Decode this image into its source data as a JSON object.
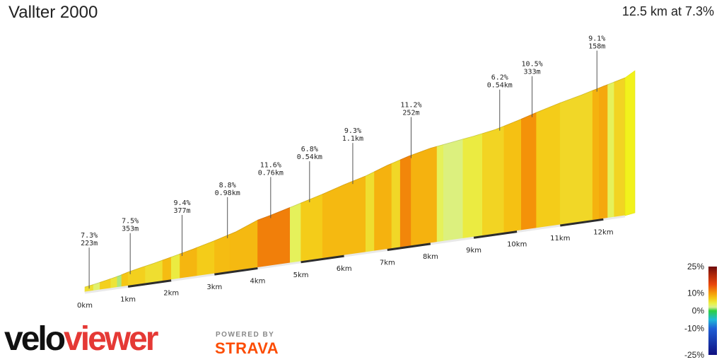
{
  "header": {
    "title": "Vallter 2000",
    "summary": "12.5 km at 7.3%"
  },
  "chart_data": {
    "type": "area",
    "title": "Vallter 2000",
    "total_km": 12.5,
    "x_ticks": [
      "0km",
      "1km",
      "2km",
      "3km",
      "4km",
      "5km",
      "6km",
      "7km",
      "8km",
      "9km",
      "10km",
      "11km",
      "12km"
    ],
    "profile": [
      {
        "km": 0.0,
        "elev": 0
      },
      {
        "km": 0.2,
        "elev": 10
      },
      {
        "km": 0.5,
        "elev": 28
      },
      {
        "km": 0.8,
        "elev": 48
      },
      {
        "km": 1.0,
        "elev": 66
      },
      {
        "km": 1.3,
        "elev": 86
      },
      {
        "km": 1.6,
        "elev": 104
      },
      {
        "km": 2.0,
        "elev": 132
      },
      {
        "km": 2.5,
        "elev": 168
      },
      {
        "km": 3.0,
        "elev": 208
      },
      {
        "km": 3.5,
        "elev": 252
      },
      {
        "km": 4.0,
        "elev": 316
      },
      {
        "km": 4.3,
        "elev": 338
      },
      {
        "km": 4.8,
        "elev": 380
      },
      {
        "km": 5.5,
        "elev": 440
      },
      {
        "km": 6.0,
        "elev": 488
      },
      {
        "km": 6.5,
        "elev": 530
      },
      {
        "km": 7.0,
        "elev": 586
      },
      {
        "km": 7.5,
        "elev": 632
      },
      {
        "km": 8.0,
        "elev": 668
      },
      {
        "km": 8.5,
        "elev": 690
      },
      {
        "km": 9.0,
        "elev": 712
      },
      {
        "km": 9.5,
        "elev": 738
      },
      {
        "km": 10.0,
        "elev": 780
      },
      {
        "km": 10.5,
        "elev": 826
      },
      {
        "km": 11.0,
        "elev": 868
      },
      {
        "km": 11.5,
        "elev": 905
      },
      {
        "km": 12.0,
        "elev": 946
      },
      {
        "km": 12.5,
        "elev": 986
      }
    ],
    "segments": [
      {
        "from": 0.0,
        "to": 0.2,
        "gradient": 5.5
      },
      {
        "from": 0.2,
        "to": 0.35,
        "gradient": 3.0
      },
      {
        "from": 0.35,
        "to": 0.6,
        "gradient": 6.5
      },
      {
        "from": 0.6,
        "to": 0.75,
        "gradient": 5.0
      },
      {
        "from": 0.75,
        "to": 0.85,
        "gradient": 1.5
      },
      {
        "from": 0.85,
        "to": 1.0,
        "gradient": 7.2
      },
      {
        "from": 1.0,
        "to": 1.4,
        "gradient": 6.5
      },
      {
        "from": 1.4,
        "to": 1.8,
        "gradient": 5.5
      },
      {
        "from": 1.8,
        "to": 2.0,
        "gradient": 7.8
      },
      {
        "from": 2.0,
        "to": 2.2,
        "gradient": 4.5
      },
      {
        "from": 2.2,
        "to": 2.6,
        "gradient": 8.2
      },
      {
        "from": 2.6,
        "to": 3.0,
        "gradient": 6.8
      },
      {
        "from": 3.0,
        "to": 3.35,
        "gradient": 7.8
      },
      {
        "from": 3.35,
        "to": 4.0,
        "gradient": 8.0
      },
      {
        "from": 4.0,
        "to": 4.75,
        "gradient": 11.6
      },
      {
        "from": 4.75,
        "to": 5.0,
        "gradient": 3.5
      },
      {
        "from": 5.0,
        "to": 5.5,
        "gradient": 6.8
      },
      {
        "from": 5.5,
        "to": 6.5,
        "gradient": 8.0
      },
      {
        "from": 6.5,
        "to": 6.7,
        "gradient": 5.5
      },
      {
        "from": 6.7,
        "to": 7.1,
        "gradient": 8.5
      },
      {
        "from": 7.1,
        "to": 7.3,
        "gradient": 6.0
      },
      {
        "from": 7.3,
        "to": 7.55,
        "gradient": 11.2
      },
      {
        "from": 7.55,
        "to": 8.15,
        "gradient": 8.5
      },
      {
        "from": 8.15,
        "to": 8.3,
        "gradient": 3.5
      },
      {
        "from": 8.3,
        "to": 8.75,
        "gradient": 2.5
      },
      {
        "from": 8.75,
        "to": 9.2,
        "gradient": 4.5
      },
      {
        "from": 9.2,
        "to": 9.7,
        "gradient": 6.2
      },
      {
        "from": 9.7,
        "to": 10.1,
        "gradient": 7.5
      },
      {
        "from": 10.1,
        "to": 10.45,
        "gradient": 10.5
      },
      {
        "from": 10.45,
        "to": 11.0,
        "gradient": 6.8
      },
      {
        "from": 11.0,
        "to": 11.75,
        "gradient": 6.0
      },
      {
        "from": 11.75,
        "to": 11.9,
        "gradient": 8.5
      },
      {
        "from": 11.9,
        "to": 12.1,
        "gradient": 9.1
      },
      {
        "from": 12.1,
        "to": 12.25,
        "gradient": 3.5
      },
      {
        "from": 12.25,
        "to": 12.5,
        "gradient": 6.2
      }
    ],
    "annotations": [
      {
        "km": 0.1,
        "line1": "7.3%",
        "line2": "223m"
      },
      {
        "km": 1.05,
        "line1": "7.5%",
        "line2": "353m"
      },
      {
        "km": 2.25,
        "line1": "9.4%",
        "line2": "377m"
      },
      {
        "km": 3.3,
        "line1": "8.8%",
        "line2": "0.98km"
      },
      {
        "km": 4.3,
        "line1": "11.6%",
        "line2": "0.76km"
      },
      {
        "km": 5.2,
        "line1": "6.8%",
        "line2": "0.54km"
      },
      {
        "km": 6.2,
        "line1": "9.3%",
        "line2": "1.1km"
      },
      {
        "km": 7.55,
        "line1": "11.2%",
        "line2": "252m"
      },
      {
        "km": 9.6,
        "line1": "6.2%",
        "line2": "0.54km"
      },
      {
        "km": 10.35,
        "line1": "10.5%",
        "line2": "333m"
      },
      {
        "km": 11.85,
        "line1": "9.1%",
        "line2": "158m"
      }
    ],
    "legend": {
      "labels": [
        "25%",
        "10%",
        "0%",
        "-10%",
        "-25%"
      ],
      "values": [
        25,
        10,
        0,
        -10,
        -25
      ],
      "colors": [
        {
          "v": 25,
          "c": "#6e0b0b"
        },
        {
          "v": 20,
          "c": "#b22a0a"
        },
        {
          "v": 15,
          "c": "#e8450c"
        },
        {
          "v": 10,
          "c": "#f59a09"
        },
        {
          "v": 7,
          "c": "#f5c915"
        },
        {
          "v": 4,
          "c": "#e9f24a"
        },
        {
          "v": 2,
          "c": "#d8ef8f"
        },
        {
          "v": 0,
          "c": "#2fcf3f"
        },
        {
          "v": -5,
          "c": "#20b9d8"
        },
        {
          "v": -10,
          "c": "#1f5fd6"
        },
        {
          "v": -25,
          "c": "#101080"
        }
      ]
    }
  },
  "branding": {
    "logo_velo": "velo",
    "logo_viewer": "viewer",
    "powered_by": "POWERED BY",
    "strava": "STRAVA"
  }
}
